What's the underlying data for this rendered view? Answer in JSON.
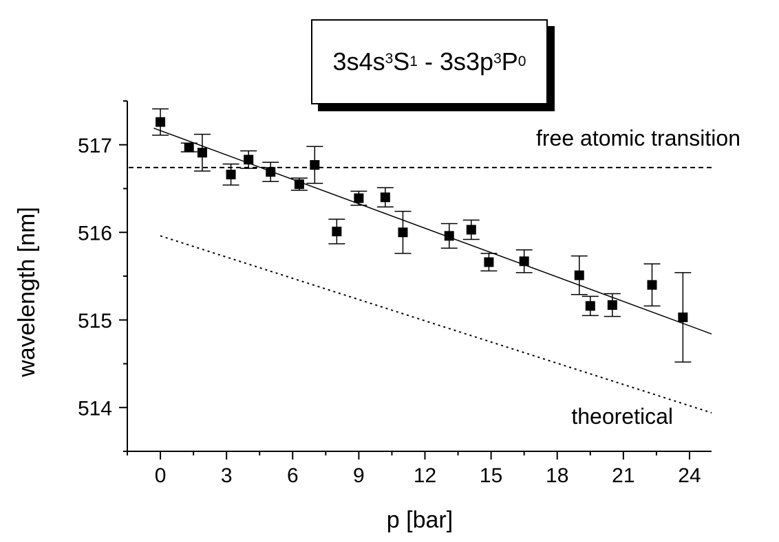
{
  "chart_data": {
    "type": "scatter",
    "title": {
      "upper_level": "3s4s",
      "upper_sup": "3",
      "upper_term": "S",
      "upper_sub": "1",
      "separator": " - ",
      "lower_level": "3s3p",
      "lower_sup": "3",
      "lower_term": "P",
      "lower_sub": "0"
    },
    "xlabel": "p [bar]",
    "ylabel": "wavelength [nm]",
    "xlim": [
      -1.5,
      25
    ],
    "ylim": [
      513.5,
      517.5
    ],
    "x_ticks": [
      "0",
      "3",
      "6",
      "9",
      "12",
      "15",
      "18",
      "21",
      "24"
    ],
    "y_ticks": [
      "514",
      "515",
      "516",
      "517"
    ],
    "points": [
      {
        "x": 0.0,
        "y": 517.26,
        "err": 0.15
      },
      {
        "x": 1.3,
        "y": 516.97,
        "err": 0.05
      },
      {
        "x": 1.9,
        "y": 516.91,
        "err": 0.21
      },
      {
        "x": 3.2,
        "y": 516.66,
        "err": 0.12
      },
      {
        "x": 4.0,
        "y": 516.83,
        "err": 0.1
      },
      {
        "x": 5.0,
        "y": 516.69,
        "err": 0.11
      },
      {
        "x": 6.3,
        "y": 516.55,
        "err": 0.07
      },
      {
        "x": 7.0,
        "y": 516.77,
        "err": 0.21
      },
      {
        "x": 8.0,
        "y": 516.01,
        "err": 0.14
      },
      {
        "x": 9.0,
        "y": 516.39,
        "err": 0.08
      },
      {
        "x": 10.2,
        "y": 516.4,
        "err": 0.11
      },
      {
        "x": 11.0,
        "y": 516.0,
        "err": 0.24
      },
      {
        "x": 13.1,
        "y": 515.96,
        "err": 0.14
      },
      {
        "x": 14.1,
        "y": 516.03,
        "err": 0.11
      },
      {
        "x": 14.9,
        "y": 515.66,
        "err": 0.1
      },
      {
        "x": 16.5,
        "y": 515.67,
        "err": 0.13
      },
      {
        "x": 19.0,
        "y": 515.51,
        "err": 0.22
      },
      {
        "x": 19.5,
        "y": 515.16,
        "err": 0.11
      },
      {
        "x": 20.5,
        "y": 515.17,
        "err": 0.13
      },
      {
        "x": 22.3,
        "y": 515.4,
        "err": 0.24
      },
      {
        "x": 23.7,
        "y": 515.03,
        "err": 0.51
      }
    ],
    "fit_line": {
      "x": [
        -0.3,
        25
      ],
      "y": [
        517.19,
        514.84
      ]
    },
    "reference_line": {
      "y": 516.74,
      "x": [
        -1.5,
        25
      ],
      "label": "free atomic transition"
    },
    "theoretical_line": {
      "x": [
        0,
        25
      ],
      "y": [
        515.96,
        513.94
      ],
      "label": "theoretical"
    }
  }
}
